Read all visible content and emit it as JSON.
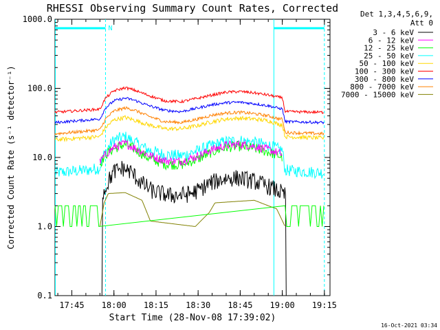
{
  "chart_data": {
    "type": "line",
    "title": "RHESSI Observing Summary Count Rates, Corrected",
    "xlabel": "Start Time (28-Nov-08 17:39:02)",
    "ylabel": "Corrected Count Rate (s⁻¹ detector⁻¹)",
    "y_scale": "log",
    "ylim": [
      0.1,
      1000.0
    ],
    "xlim": [
      "17:39",
      "19:17"
    ],
    "x_ticks": [
      "17:45",
      "18:00",
      "18:15",
      "18:30",
      "18:45",
      "19:00",
      "19:15"
    ],
    "y_ticks": [
      "0.1",
      "1.0",
      "10.0",
      "100.0",
      "1000.0"
    ],
    "legend_title": [
      "Det 1,3,4,5,6,9,",
      "Att 0"
    ],
    "legend_position": "right",
    "footer_timestamp": "16-Oct-2021 03:34",
    "night_marker_label": "N",
    "night_markers": {
      "color": "#00ffff",
      "dashed_lines": [
        "17:57",
        "19:15"
      ],
      "solid_lines": [
        "17:39",
        "18:57"
      ],
      "night_bars": [
        [
          "17:39",
          "17:57"
        ],
        [
          "18:57",
          "19:15"
        ]
      ]
    },
    "series": [
      {
        "name": "3 - 6 keV",
        "color": "#000000",
        "noise": 0.5,
        "points": [
          [
            "17:55",
            0
          ],
          [
            "17:56.5",
            3.2
          ],
          [
            "17:58",
            4.5
          ],
          [
            "18:00",
            6.2
          ],
          [
            "18:03",
            7
          ],
          [
            "18:06",
            6.2
          ],
          [
            "18:10",
            4.2
          ],
          [
            "18:14",
            3.2
          ],
          [
            "18:20",
            2.8
          ],
          [
            "18:26",
            2.9
          ],
          [
            "18:30",
            3.3
          ],
          [
            "18:34",
            4.2
          ],
          [
            "18:40",
            5
          ],
          [
            "18:45",
            5
          ],
          [
            "18:50",
            4.5
          ],
          [
            "18:55",
            3.8
          ],
          [
            "18:59",
            3.2
          ],
          [
            "19:01",
            2.8
          ],
          [
            "19:01.5",
            0
          ]
        ]
      },
      {
        "name": "6 - 12 keV",
        "color": "#ff00ff",
        "noise": 0.25,
        "points": [
          [
            "17:55",
            8.5
          ],
          [
            "17:57",
            11
          ],
          [
            "18:00",
            14
          ],
          [
            "18:04",
            16
          ],
          [
            "18:07",
            14
          ],
          [
            "18:12",
            11
          ],
          [
            "18:18",
            9
          ],
          [
            "18:24",
            8.8
          ],
          [
            "18:30",
            10.5
          ],
          [
            "18:35",
            13
          ],
          [
            "18:40",
            15
          ],
          [
            "18:45",
            15.5
          ],
          [
            "18:50",
            14.5
          ],
          [
            "18:55",
            13
          ],
          [
            "18:59",
            11.5
          ],
          [
            "19:00",
            11
          ]
        ]
      },
      {
        "name": "12 - 25 keV",
        "color": "#00ff00",
        "noise": 0.3,
        "points": [
          [
            "17:55",
            8
          ],
          [
            "17:57",
            11
          ],
          [
            "18:00",
            13.5
          ],
          [
            "18:04",
            15.5
          ],
          [
            "18:07",
            13.5
          ],
          [
            "18:12",
            10
          ],
          [
            "18:18",
            8
          ],
          [
            "18:24",
            7.8
          ],
          [
            "18:30",
            9.5
          ],
          [
            "18:35",
            12
          ],
          [
            "18:40",
            14
          ],
          [
            "18:45",
            14.5
          ],
          [
            "18:50",
            13.5
          ],
          [
            "18:55",
            12
          ],
          [
            "18:59",
            10.5
          ],
          [
            "19:00",
            10
          ]
        ]
      },
      {
        "name": "25 - 50 keV",
        "color": "#00ffff",
        "noise": 0.35,
        "points": [
          [
            "17:39",
            6
          ],
          [
            "17:50",
            6.5
          ],
          [
            "17:55",
            7
          ],
          [
            "17:56",
            10
          ],
          [
            "17:58",
            14
          ],
          [
            "18:00",
            18
          ],
          [
            "18:04",
            20
          ],
          [
            "18:07",
            17
          ],
          [
            "18:12",
            13
          ],
          [
            "18:18",
            11
          ],
          [
            "18:24",
            10.5
          ],
          [
            "18:30",
            12.5
          ],
          [
            "18:35",
            15
          ],
          [
            "18:40",
            17
          ],
          [
            "18:45",
            17.5
          ],
          [
            "18:50",
            16.5
          ],
          [
            "18:55",
            15
          ],
          [
            "18:59",
            13
          ],
          [
            "19:00",
            13
          ],
          [
            "19:01",
            6.5
          ],
          [
            "19:15",
            6
          ]
        ]
      },
      {
        "name": "50 - 100 keV",
        "color": "#ffd700",
        "noise": 0.12,
        "points": [
          [
            "17:39",
            18
          ],
          [
            "17:55",
            20
          ],
          [
            "17:57",
            27
          ],
          [
            "18:00",
            35
          ],
          [
            "18:04",
            38
          ],
          [
            "18:07",
            35
          ],
          [
            "18:12",
            30
          ],
          [
            "18:18",
            26
          ],
          [
            "18:24",
            26
          ],
          [
            "18:30",
            29
          ],
          [
            "18:35",
            33
          ],
          [
            "18:40",
            36
          ],
          [
            "18:45",
            37
          ],
          [
            "18:50",
            36
          ],
          [
            "18:55",
            34
          ],
          [
            "18:59",
            30
          ],
          [
            "19:00",
            30
          ],
          [
            "19:01",
            20
          ],
          [
            "19:15",
            19
          ]
        ]
      },
      {
        "name": "100 - 300 keV",
        "color": "#ff0000",
        "noise": 0.08,
        "points": [
          [
            "17:39",
            45
          ],
          [
            "17:55",
            50
          ],
          [
            "17:57",
            72
          ],
          [
            "18:00",
            92
          ],
          [
            "18:04",
            102
          ],
          [
            "18:07",
            95
          ],
          [
            "18:12",
            80
          ],
          [
            "18:18",
            66
          ],
          [
            "18:24",
            64
          ],
          [
            "18:30",
            72
          ],
          [
            "18:35",
            80
          ],
          [
            "18:40",
            88
          ],
          [
            "18:45",
            90
          ],
          [
            "18:50",
            86
          ],
          [
            "18:55",
            80
          ],
          [
            "18:59",
            74
          ],
          [
            "19:00",
            74
          ],
          [
            "19:01",
            46
          ],
          [
            "19:15",
            45
          ]
        ]
      },
      {
        "name": "300 - 800 keV",
        "color": "#0000ff",
        "noise": 0.08,
        "points": [
          [
            "17:39",
            32
          ],
          [
            "17:55",
            36
          ],
          [
            "17:57",
            52
          ],
          [
            "18:00",
            66
          ],
          [
            "18:04",
            72
          ],
          [
            "18:07",
            68
          ],
          [
            "18:12",
            57
          ],
          [
            "18:18",
            48
          ],
          [
            "18:24",
            46
          ],
          [
            "18:30",
            52
          ],
          [
            "18:35",
            58
          ],
          [
            "18:40",
            62
          ],
          [
            "18:45",
            63
          ],
          [
            "18:50",
            60
          ],
          [
            "18:55",
            56
          ],
          [
            "18:59",
            51
          ],
          [
            "19:00",
            51
          ],
          [
            "19:01",
            33
          ],
          [
            "19:15",
            32
          ]
        ]
      },
      {
        "name": "800 - 7000 keV",
        "color": "#ff8000",
        "noise": 0.09,
        "points": [
          [
            "17:39",
            22
          ],
          [
            "17:55",
            25
          ],
          [
            "17:57",
            36
          ],
          [
            "18:00",
            47
          ],
          [
            "18:04",
            52
          ],
          [
            "18:07",
            49
          ],
          [
            "18:12",
            40
          ],
          [
            "18:18",
            33
          ],
          [
            "18:24",
            32
          ],
          [
            "18:30",
            36
          ],
          [
            "18:35",
            41
          ],
          [
            "18:40",
            44
          ],
          [
            "18:45",
            45
          ],
          [
            "18:50",
            43
          ],
          [
            "18:55",
            40
          ],
          [
            "18:59",
            36
          ],
          [
            "19:00",
            36
          ],
          [
            "19:01",
            23
          ],
          [
            "19:15",
            22
          ]
        ]
      },
      {
        "name": "7000 - 15000 keV",
        "color": "#808000",
        "noise": 0.0,
        "points": [
          [
            "17:55",
            1.0
          ],
          [
            "17:56.5",
            2.2
          ],
          [
            "17:58",
            3.0
          ],
          [
            "18:04",
            3.1
          ],
          [
            "18:10",
            2.4
          ],
          [
            "18:13",
            1.2
          ],
          [
            "18:29",
            1.0
          ],
          [
            "18:34",
            1.6
          ],
          [
            "18:36",
            2.2
          ],
          [
            "18:50",
            2.4
          ],
          [
            "18:55",
            2.0
          ],
          [
            "18:58",
            1.8
          ],
          [
            "19:01",
            1.0
          ]
        ]
      }
    ]
  }
}
